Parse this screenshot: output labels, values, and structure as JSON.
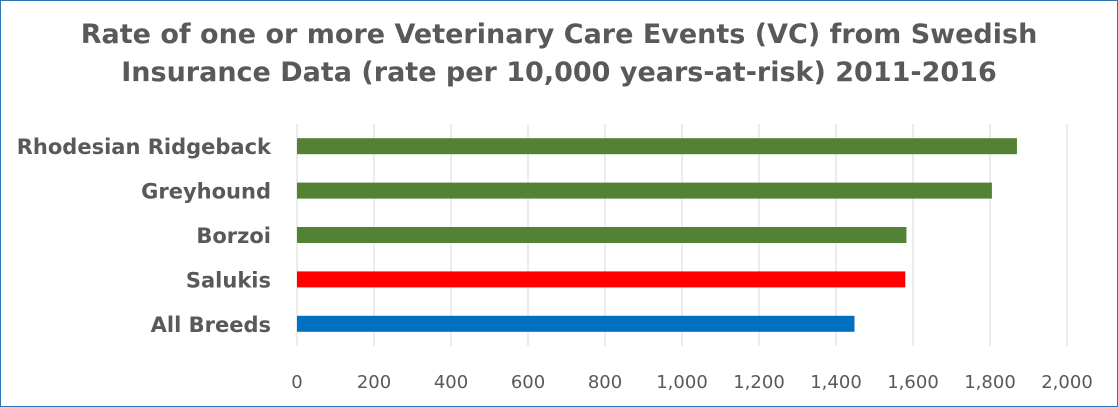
{
  "chart_data": {
    "type": "bar",
    "orientation": "horizontal",
    "title_lines": [
      "Rate of one or more Veterinary Care Events (VC) from Swedish",
      "Insurance Data (rate per 10,000 years-at-risk) 2011-2016"
    ],
    "categories": [
      "Rhodesian Ridgeback",
      "Greyhound",
      "Borzoi",
      "Salukis",
      "All Breeds"
    ],
    "values": [
      1870,
      1805,
      1583,
      1580,
      1448
    ],
    "colors": [
      "#548235",
      "#548235",
      "#548235",
      "#ff0000",
      "#0070c0"
    ],
    "xlim": [
      0,
      2000
    ],
    "xticks": [
      0,
      200,
      400,
      600,
      800,
      1000,
      1200,
      1400,
      1600,
      1800,
      2000
    ],
    "xtick_labels": [
      "0",
      "200",
      "400",
      "600",
      "800",
      "1,000",
      "1,200",
      "1,400",
      "1,600",
      "1,800",
      "2,000"
    ],
    "grid": "vertical",
    "legend": "none"
  }
}
